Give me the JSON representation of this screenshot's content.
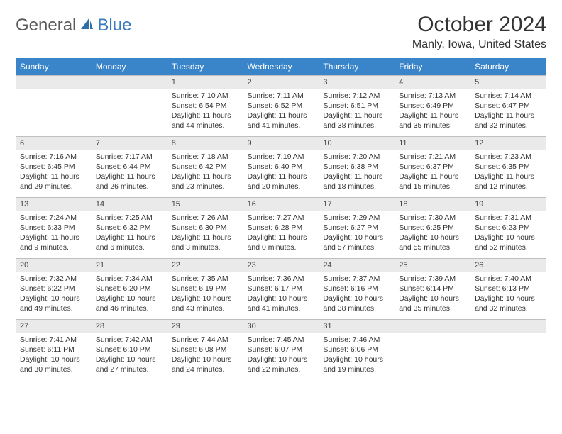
{
  "brand": {
    "text_general": "General",
    "text_blue": "Blue",
    "icon_color": "#2f6fa8"
  },
  "title": {
    "month": "October 2024",
    "location": "Manly, Iowa, United States"
  },
  "colors": {
    "header_bg": "#3a85c9",
    "header_fg": "#ffffff",
    "daynum_bg": "#eaeaea",
    "border": "#bfbfbf",
    "text": "#333333"
  },
  "day_headers": [
    "Sunday",
    "Monday",
    "Tuesday",
    "Wednesday",
    "Thursday",
    "Friday",
    "Saturday"
  ],
  "weeks": [
    [
      null,
      null,
      {
        "n": "1",
        "sr": "Sunrise: 7:10 AM",
        "ss": "Sunset: 6:54 PM",
        "dl": "Daylight: 11 hours and 44 minutes."
      },
      {
        "n": "2",
        "sr": "Sunrise: 7:11 AM",
        "ss": "Sunset: 6:52 PM",
        "dl": "Daylight: 11 hours and 41 minutes."
      },
      {
        "n": "3",
        "sr": "Sunrise: 7:12 AM",
        "ss": "Sunset: 6:51 PM",
        "dl": "Daylight: 11 hours and 38 minutes."
      },
      {
        "n": "4",
        "sr": "Sunrise: 7:13 AM",
        "ss": "Sunset: 6:49 PM",
        "dl": "Daylight: 11 hours and 35 minutes."
      },
      {
        "n": "5",
        "sr": "Sunrise: 7:14 AM",
        "ss": "Sunset: 6:47 PM",
        "dl": "Daylight: 11 hours and 32 minutes."
      }
    ],
    [
      {
        "n": "6",
        "sr": "Sunrise: 7:16 AM",
        "ss": "Sunset: 6:45 PM",
        "dl": "Daylight: 11 hours and 29 minutes."
      },
      {
        "n": "7",
        "sr": "Sunrise: 7:17 AM",
        "ss": "Sunset: 6:44 PM",
        "dl": "Daylight: 11 hours and 26 minutes."
      },
      {
        "n": "8",
        "sr": "Sunrise: 7:18 AM",
        "ss": "Sunset: 6:42 PM",
        "dl": "Daylight: 11 hours and 23 minutes."
      },
      {
        "n": "9",
        "sr": "Sunrise: 7:19 AM",
        "ss": "Sunset: 6:40 PM",
        "dl": "Daylight: 11 hours and 20 minutes."
      },
      {
        "n": "10",
        "sr": "Sunrise: 7:20 AM",
        "ss": "Sunset: 6:38 PM",
        "dl": "Daylight: 11 hours and 18 minutes."
      },
      {
        "n": "11",
        "sr": "Sunrise: 7:21 AM",
        "ss": "Sunset: 6:37 PM",
        "dl": "Daylight: 11 hours and 15 minutes."
      },
      {
        "n": "12",
        "sr": "Sunrise: 7:23 AM",
        "ss": "Sunset: 6:35 PM",
        "dl": "Daylight: 11 hours and 12 minutes."
      }
    ],
    [
      {
        "n": "13",
        "sr": "Sunrise: 7:24 AM",
        "ss": "Sunset: 6:33 PM",
        "dl": "Daylight: 11 hours and 9 minutes."
      },
      {
        "n": "14",
        "sr": "Sunrise: 7:25 AM",
        "ss": "Sunset: 6:32 PM",
        "dl": "Daylight: 11 hours and 6 minutes."
      },
      {
        "n": "15",
        "sr": "Sunrise: 7:26 AM",
        "ss": "Sunset: 6:30 PM",
        "dl": "Daylight: 11 hours and 3 minutes."
      },
      {
        "n": "16",
        "sr": "Sunrise: 7:27 AM",
        "ss": "Sunset: 6:28 PM",
        "dl": "Daylight: 11 hours and 0 minutes."
      },
      {
        "n": "17",
        "sr": "Sunrise: 7:29 AM",
        "ss": "Sunset: 6:27 PM",
        "dl": "Daylight: 10 hours and 57 minutes."
      },
      {
        "n": "18",
        "sr": "Sunrise: 7:30 AM",
        "ss": "Sunset: 6:25 PM",
        "dl": "Daylight: 10 hours and 55 minutes."
      },
      {
        "n": "19",
        "sr": "Sunrise: 7:31 AM",
        "ss": "Sunset: 6:23 PM",
        "dl": "Daylight: 10 hours and 52 minutes."
      }
    ],
    [
      {
        "n": "20",
        "sr": "Sunrise: 7:32 AM",
        "ss": "Sunset: 6:22 PM",
        "dl": "Daylight: 10 hours and 49 minutes."
      },
      {
        "n": "21",
        "sr": "Sunrise: 7:34 AM",
        "ss": "Sunset: 6:20 PM",
        "dl": "Daylight: 10 hours and 46 minutes."
      },
      {
        "n": "22",
        "sr": "Sunrise: 7:35 AM",
        "ss": "Sunset: 6:19 PM",
        "dl": "Daylight: 10 hours and 43 minutes."
      },
      {
        "n": "23",
        "sr": "Sunrise: 7:36 AM",
        "ss": "Sunset: 6:17 PM",
        "dl": "Daylight: 10 hours and 41 minutes."
      },
      {
        "n": "24",
        "sr": "Sunrise: 7:37 AM",
        "ss": "Sunset: 6:16 PM",
        "dl": "Daylight: 10 hours and 38 minutes."
      },
      {
        "n": "25",
        "sr": "Sunrise: 7:39 AM",
        "ss": "Sunset: 6:14 PM",
        "dl": "Daylight: 10 hours and 35 minutes."
      },
      {
        "n": "26",
        "sr": "Sunrise: 7:40 AM",
        "ss": "Sunset: 6:13 PM",
        "dl": "Daylight: 10 hours and 32 minutes."
      }
    ],
    [
      {
        "n": "27",
        "sr": "Sunrise: 7:41 AM",
        "ss": "Sunset: 6:11 PM",
        "dl": "Daylight: 10 hours and 30 minutes."
      },
      {
        "n": "28",
        "sr": "Sunrise: 7:42 AM",
        "ss": "Sunset: 6:10 PM",
        "dl": "Daylight: 10 hours and 27 minutes."
      },
      {
        "n": "29",
        "sr": "Sunrise: 7:44 AM",
        "ss": "Sunset: 6:08 PM",
        "dl": "Daylight: 10 hours and 24 minutes."
      },
      {
        "n": "30",
        "sr": "Sunrise: 7:45 AM",
        "ss": "Sunset: 6:07 PM",
        "dl": "Daylight: 10 hours and 22 minutes."
      },
      {
        "n": "31",
        "sr": "Sunrise: 7:46 AM",
        "ss": "Sunset: 6:06 PM",
        "dl": "Daylight: 10 hours and 19 minutes."
      },
      null,
      null
    ]
  ]
}
